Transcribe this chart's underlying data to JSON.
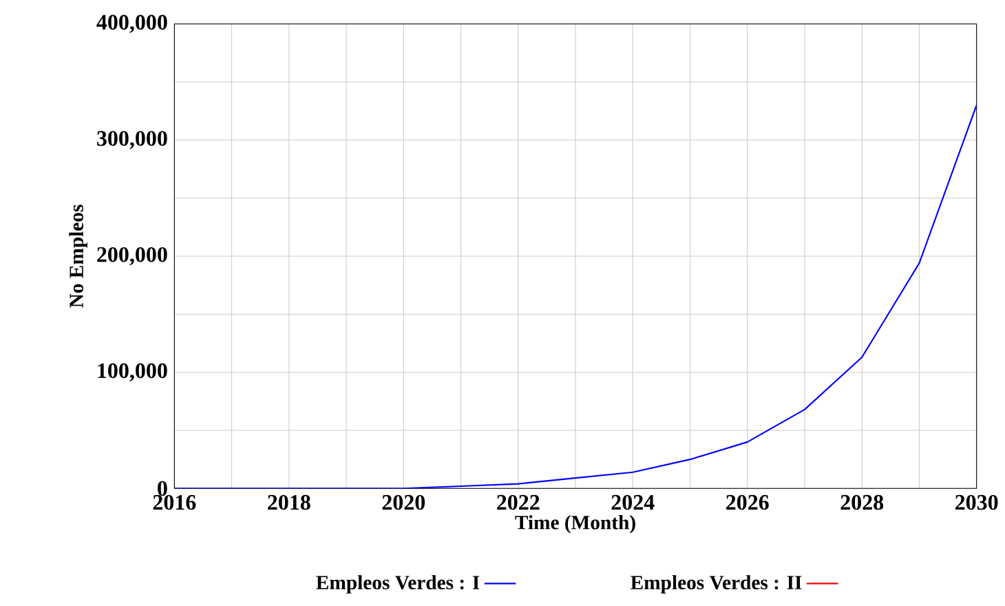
{
  "chart_data": {
    "type": "line",
    "xlabel": "Time (Month)",
    "ylabel": "No Empleos",
    "x": [
      2016,
      2017,
      2018,
      2019,
      2020,
      2021,
      2022,
      2023,
      2024,
      2025,
      2026,
      2027,
      2028,
      2029,
      2030
    ],
    "series": [
      {
        "name": "Empleos Verdes : I",
        "color": "#0000ff",
        "values": [
          0,
          0,
          0,
          0,
          0,
          2000,
          4000,
          9000,
          14000,
          25000,
          40000,
          68000,
          113000,
          194000,
          330000
        ]
      },
      {
        "name": "Empleos Verdes : II",
        "color": "#ff0000",
        "values": [
          null,
          null,
          null,
          null,
          null,
          null,
          null,
          null,
          null,
          null,
          null,
          null,
          null,
          null,
          null
        ]
      }
    ],
    "xlim": [
      2016,
      2030
    ],
    "xticks": [
      2016,
      {
        "value": 2017,
        "label": null
      },
      2018,
      {
        "value": 2019,
        "label": null
      },
      2020,
      {
        "value": 2021,
        "label": null
      },
      2022,
      {
        "value": 2023,
        "label": null
      },
      2024,
      {
        "value": 2025,
        "label": null
      },
      2026,
      {
        "value": 2027,
        "label": null
      },
      2028,
      {
        "value": 2029,
        "label": null
      },
      2030
    ],
    "ylim": [
      0,
      400000
    ],
    "yticks": [
      {
        "value": 0,
        "label": "0"
      },
      {
        "value": 50000,
        "label": null
      },
      {
        "value": 100000,
        "label": "100,000"
      },
      {
        "value": 150000,
        "label": null
      },
      {
        "value": 200000,
        "label": "200,000"
      },
      {
        "value": 250000,
        "label": null
      },
      {
        "value": 300000,
        "label": "300,000"
      },
      {
        "value": 350000,
        "label": null
      },
      {
        "value": 400000,
        "label": "400,000"
      }
    ],
    "grid": true,
    "legend": "bottom",
    "marker": "none",
    "line_style": "solid"
  }
}
